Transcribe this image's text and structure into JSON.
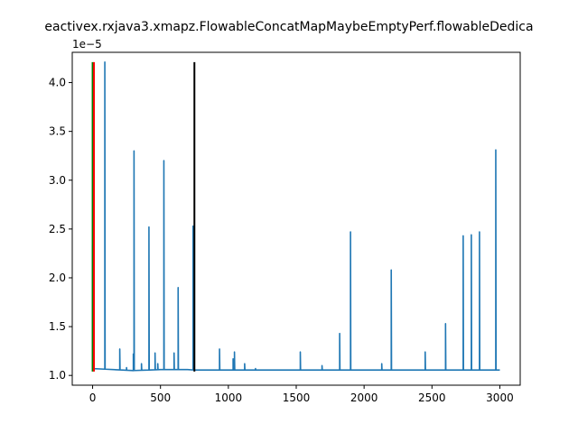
{
  "chart_data": {
    "type": "line",
    "title": "eactivex.rxjava3.xmapz.FlowableConcatMapMaybeEmptyPerf.flowableDedica",
    "xlabel": "",
    "ylabel": "",
    "y_offset_label": "1e−5",
    "xlim": [
      -150,
      3150
    ],
    "ylim": [
      9e-06,
      4.31e-05
    ],
    "grid": false,
    "x_ticks": [
      0,
      500,
      1000,
      1500,
      2000,
      2500,
      3000
    ],
    "x_tick_labels": [
      "0",
      "500",
      "1000",
      "1500",
      "2000",
      "2500",
      "3000"
    ],
    "y_ticks": [
      1e-05,
      1.5e-05,
      2e-05,
      2.5e-05,
      3e-05,
      3.5e-05,
      4e-05
    ],
    "y_tick_labels": [
      "1.0",
      "1.5",
      "2.0",
      "2.5",
      "3.0",
      "3.5",
      "4.0"
    ],
    "series": [
      {
        "color": "#1f77b4",
        "baseline": [
          [
            0,
            1.07e-05
          ],
          [
            300,
            1.05e-05
          ],
          [
            500,
            1.06e-05
          ],
          [
            700,
            1.06e-05
          ],
          [
            750,
            1.055e-05
          ],
          [
            1000,
            1.055e-05
          ],
          [
            1500,
            1.055e-05
          ],
          [
            2000,
            1.055e-05
          ],
          [
            2500,
            1.055e-05
          ],
          [
            3000,
            1.055e-05
          ]
        ],
        "spikes": [
          [
            0,
            2.33e-05
          ],
          [
            10,
            1.09e-05
          ],
          [
            90,
            4.21e-05
          ],
          [
            200,
            1.27e-05
          ],
          [
            250,
            1.08e-05
          ],
          [
            300,
            1.22e-05
          ],
          [
            305,
            3.3e-05
          ],
          [
            360,
            1.12e-05
          ],
          [
            415,
            2.52e-05
          ],
          [
            460,
            1.23e-05
          ],
          [
            480,
            1.12e-05
          ],
          [
            525,
            3.2e-05
          ],
          [
            600,
            1.23e-05
          ],
          [
            630,
            1.9e-05
          ],
          [
            740,
            2.53e-05
          ],
          [
            935,
            1.27e-05
          ],
          [
            1035,
            1.17e-05
          ],
          [
            1045,
            1.24e-05
          ],
          [
            1120,
            1.12e-05
          ],
          [
            1200,
            1.07e-05
          ],
          [
            1530,
            1.24e-05
          ],
          [
            1690,
            1.1e-05
          ],
          [
            1820,
            1.43e-05
          ],
          [
            1900,
            2.47e-05
          ],
          [
            2130,
            1.12e-05
          ],
          [
            2200,
            2.08e-05
          ],
          [
            2450,
            1.24e-05
          ],
          [
            2600,
            1.53e-05
          ],
          [
            2730,
            2.43e-05
          ],
          [
            2790,
            2.44e-05
          ],
          [
            2850,
            2.47e-05
          ],
          [
            2970,
            3.31e-05
          ]
        ]
      }
    ],
    "vertical_lines": [
      {
        "x": 0,
        "ymin": 1.04e-05,
        "ymax": 4.21e-05,
        "color": "#008000"
      },
      {
        "x": 10,
        "ymin": 1.04e-05,
        "ymax": 4.21e-05,
        "color": "#ff0000"
      },
      {
        "x": 750,
        "ymin": 1.04e-05,
        "ymax": 4.21e-05,
        "color": "#000000"
      }
    ]
  }
}
